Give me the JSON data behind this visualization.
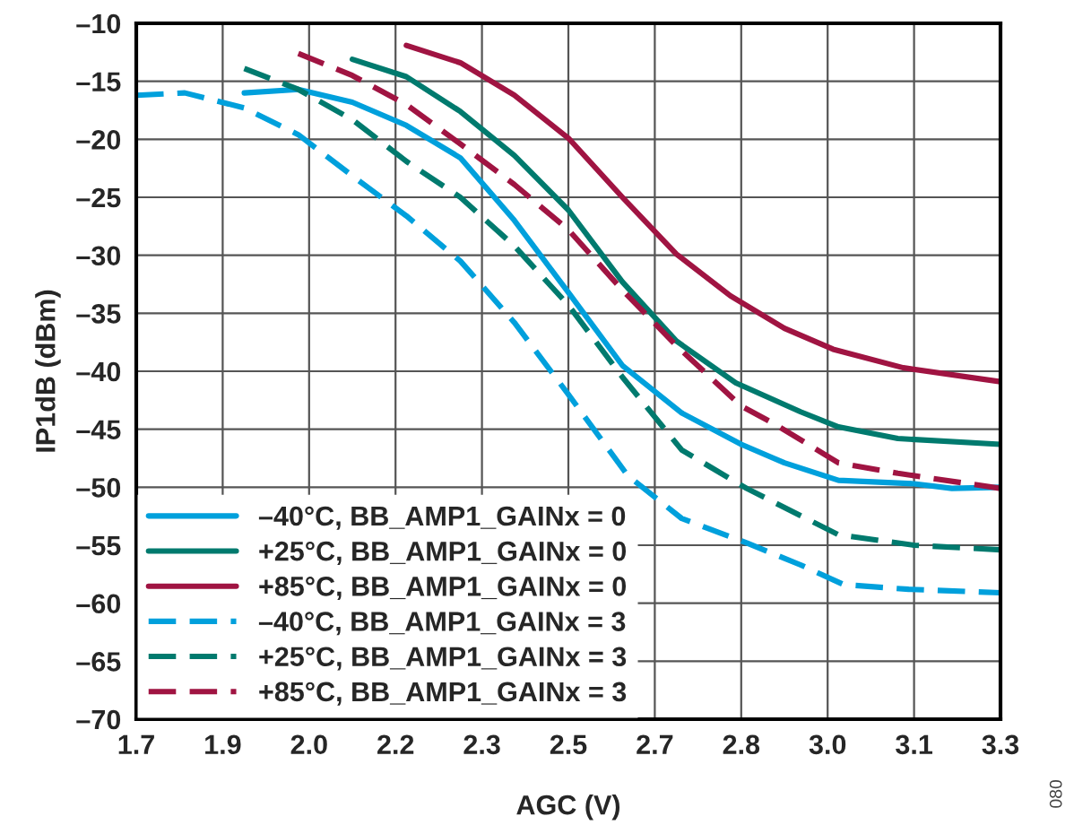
{
  "chart_data": {
    "type": "line",
    "xlabel": "AGC (V)",
    "ylabel": "IP1dB (dBm)",
    "xlim": [
      1.7,
      3.3
    ],
    "xticks": [
      {
        "value": 1.7,
        "label": "1.7"
      },
      {
        "value": 1.86,
        "label": "1.9"
      },
      {
        "value": 2.02,
        "label": "2.0"
      },
      {
        "value": 2.18,
        "label": "2.2"
      },
      {
        "value": 2.34,
        "label": "2.3"
      },
      {
        "value": 2.5,
        "label": "2.5"
      },
      {
        "value": 2.66,
        "label": "2.7"
      },
      {
        "value": 2.82,
        "label": "2.8"
      },
      {
        "value": 2.98,
        "label": "3.0"
      },
      {
        "value": 3.14,
        "label": "3.1"
      },
      {
        "value": 3.3,
        "label": "3.3"
      }
    ],
    "ylim": [
      -70,
      -10
    ],
    "yticks": [
      {
        "value": -70,
        "label": "–70"
      },
      {
        "value": -65,
        "label": "–65"
      },
      {
        "value": -60,
        "label": "–60"
      },
      {
        "value": -55,
        "label": "–55"
      },
      {
        "value": -50,
        "label": "–50"
      },
      {
        "value": -45,
        "label": "–45"
      },
      {
        "value": -40,
        "label": "–40"
      },
      {
        "value": -35,
        "label": "–35"
      },
      {
        "value": -30,
        "label": "–30"
      },
      {
        "value": -25,
        "label": "–25"
      },
      {
        "value": -20,
        "label": "–20"
      },
      {
        "value": -15,
        "label": "–15"
      },
      {
        "value": -10,
        "label": "–10"
      }
    ],
    "grid": true,
    "legend": "bottom left",
    "marker": "none",
    "annotations": [
      "080"
    ],
    "series": [
      {
        "name": "–40°C, BB_AMP1_GAINx = 0",
        "color": "#00a0dc",
        "line_style": "solid",
        "x": [
          1.9,
          2.0,
          2.1,
          2.2,
          2.3,
          2.4,
          2.5,
          2.6,
          2.71,
          2.82,
          2.9,
          3.0,
          3.14,
          3.21,
          3.3
        ],
        "values": [
          -16,
          -15.7,
          -16.8,
          -18.8,
          -21.6,
          -27,
          -33.2,
          -39.5,
          -43.6,
          -46.3,
          -47.9,
          -49.4,
          -49.7,
          -50.1,
          -50
        ]
      },
      {
        "name": "+25°C, BB_AMP1_GAINx = 0",
        "color": "#007a6e",
        "line_style": "solid",
        "x": [
          2.1,
          2.2,
          2.3,
          2.4,
          2.5,
          2.6,
          2.7,
          2.81,
          2.93,
          3.0,
          3.11,
          3.3
        ],
        "values": [
          -13.1,
          -14.6,
          -17.6,
          -21.4,
          -26.1,
          -32.3,
          -37.4,
          -41,
          -43.5,
          -44.8,
          -45.8,
          -46.3
        ]
      },
      {
        "name": "+85°C, BB_AMP1_GAINx = 0",
        "color": "#a01442",
        "line_style": "solid",
        "x": [
          2.2,
          2.3,
          2.4,
          2.5,
          2.6,
          2.7,
          2.8,
          2.9,
          2.99,
          3.12,
          3.3
        ],
        "values": [
          -11.9,
          -13.4,
          -16.2,
          -19.9,
          -25,
          -29.9,
          -33.5,
          -36.3,
          -38.1,
          -39.7,
          -40.9
        ]
      },
      {
        "name": "–40°C, BB_AMP1_GAINx = 3",
        "color": "#00a0dc",
        "line_style": "dashed",
        "x": [
          1.7,
          1.79,
          1.9,
          2.0,
          2.11,
          2.2,
          2.3,
          2.4,
          2.5,
          2.61,
          2.71,
          2.83,
          2.93,
          3.01,
          3.13,
          3.3
        ],
        "values": [
          -16.2,
          -16,
          -17.3,
          -19.6,
          -23.5,
          -26.6,
          -30.5,
          -35.8,
          -42,
          -49,
          -52.7,
          -54.8,
          -56.7,
          -58.4,
          -58.8,
          -59.1
        ]
      },
      {
        "name": "+25°C, BB_AMP1_GAINx = 3",
        "color": "#007a6e",
        "line_style": "dashed",
        "x": [
          1.9,
          2.0,
          2.1,
          2.2,
          2.3,
          2.4,
          2.5,
          2.6,
          2.71,
          2.83,
          3.0,
          3.14,
          3.3
        ],
        "values": [
          -13.9,
          -15.7,
          -18.3,
          -21.9,
          -25,
          -29.2,
          -34.3,
          -40.5,
          -46.8,
          -50.1,
          -54.1,
          -55,
          -55.4
        ]
      },
      {
        "name": "+85°C, BB_AMP1_GAINx = 3",
        "color": "#a01442",
        "line_style": "dashed",
        "x": [
          2.0,
          2.1,
          2.2,
          2.3,
          2.4,
          2.5,
          2.6,
          2.7,
          2.82,
          2.88,
          3.0,
          3.11,
          3.3
        ],
        "values": [
          -12.6,
          -14.5,
          -17,
          -20.4,
          -23.9,
          -27.8,
          -33,
          -37.8,
          -43,
          -44.5,
          -47.9,
          -48.8,
          -50.1
        ]
      }
    ]
  }
}
